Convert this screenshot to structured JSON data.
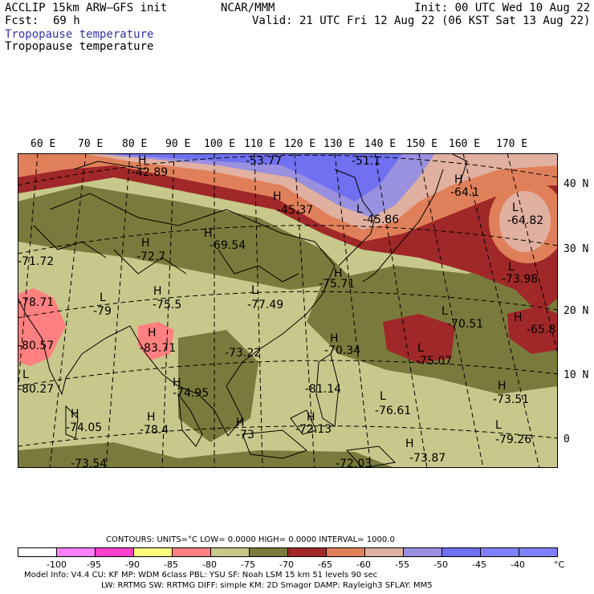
{
  "header": {
    "model": "ACCLIP 15km ARW–GFS init",
    "center": "NCAR/MMM",
    "init": "Init: 00 UTC Wed 10 Aug 22",
    "fcst_label": "Fcst:",
    "fcst_hours": "69 h",
    "valid": "Valid: 21 UTC Fri 12 Aug 22 (06 KST Sat 13 Aug 22)",
    "field_title_1": "Tropopause temperature",
    "field_title_2": "Tropopause temperature"
  },
  "colors": {
    "title_blue": "#3333aa",
    "lt_m95": "#ff80ff",
    "m95_m90": "#ff40cc",
    "m90_m85": "#ffff80",
    "m85_m80": "#ff8080",
    "m80_m75": "#c8c88c",
    "m75_m70": "#7a7a3c",
    "m70_m65": "#a02828",
    "m65_m60": "#e0805a",
    "m60_m55": "#e0b0a0",
    "m55_m50": "#9a90e0",
    "m50_m45": "#7070f0",
    "m45_m40": "#8080ff"
  },
  "map": {
    "lon_labels": [
      "60 E",
      "70 E",
      "80 E",
      "90 E",
      "100 E",
      "110 E",
      "120 E",
      "130 E",
      "140 E",
      "150 E",
      "160 E",
      "170 E"
    ],
    "lat_labels": [
      "40 N",
      "30 N",
      "20 N",
      "10 N",
      "0"
    ],
    "annotations": [
      {
        "marker": "H",
        "value": "-42.89"
      },
      {
        "marker": "",
        "value": "-53.77"
      },
      {
        "marker": "",
        "value": "-51.1"
      },
      {
        "marker": "H",
        "value": "-64.1"
      },
      {
        "marker": "H",
        "value": "-45.37"
      },
      {
        "marker": "L",
        "value": "-64.82"
      },
      {
        "marker": "L",
        "value": "-45.86"
      },
      {
        "marker": "H",
        "value": "-69.54"
      },
      {
        "marker": "H",
        "value": "-72.7"
      },
      {
        "marker": "",
        "value": "-71.72"
      },
      {
        "marker": "L",
        "value": "-73.98"
      },
      {
        "marker": "H",
        "value": "-75.71"
      },
      {
        "marker": "L",
        "value": "-77.49"
      },
      {
        "marker": "H",
        "value": "-75.5"
      },
      {
        "marker": "L",
        "value": "-79"
      },
      {
        "marker": "",
        "value": "-78.71"
      },
      {
        "marker": "L",
        "value": "-70.51"
      },
      {
        "marker": "H",
        "value": "-65.8"
      },
      {
        "marker": "H",
        "value": "-83.71"
      },
      {
        "marker": "",
        "value": "-73.22"
      },
      {
        "marker": "H",
        "value": "-70.34"
      },
      {
        "marker": "L",
        "value": "-75.07"
      },
      {
        "marker": "",
        "value": "-80.57"
      },
      {
        "marker": "L",
        "value": "-80.27"
      },
      {
        "marker": "H",
        "value": "-74.95"
      },
      {
        "marker": "",
        "value": "-81.14"
      },
      {
        "marker": "H",
        "value": "-73.51"
      },
      {
        "marker": "L",
        "value": "-76.61"
      },
      {
        "marker": "H",
        "value": "-74.05"
      },
      {
        "marker": "H",
        "value": "-78.4"
      },
      {
        "marker": "H",
        "value": "-73"
      },
      {
        "marker": "H",
        "value": "-72.13"
      },
      {
        "marker": "L",
        "value": "-79.26"
      },
      {
        "marker": "H",
        "value": "-73.87"
      },
      {
        "marker": "",
        "value": "-73.54"
      },
      {
        "marker": "",
        "value": "-72.03"
      }
    ]
  },
  "footer": {
    "contours_line": "CONTOURS:  UNITS=°C  LOW=  0.0000        HIGH=  0.0000        INTERVAL=   1000.0",
    "legend_ticks": [
      "-100",
      "-95",
      "-90",
      "-85",
      "-80",
      "-75",
      "-70",
      "-65",
      "-60",
      "-55",
      "-50",
      "-45",
      "-40",
      "°C"
    ],
    "model_info_1": "Model Info: V4.4       CU: KF       MP: WDM 6class   PBL: YSU      SF: Noah LSM      15 km    51 levels    90 sec",
    "model_info_2": "LW: RRTMG     SW: RRTMG   DIFF: simple KM: 2D Smagor DAMP: Rayleigh3   SFLAY: MM5"
  }
}
